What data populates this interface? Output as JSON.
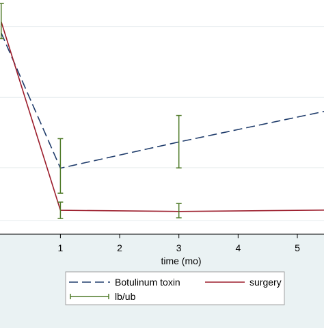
{
  "chart_data": {
    "type": "line",
    "xlabel": "time (mo)",
    "xlim": [
      -0.02,
      5.45
    ],
    "ylim": [
      0,
      1
    ],
    "x_ticks": [
      1,
      2,
      3,
      4,
      5
    ],
    "grid": true,
    "legend_position": "bottom",
    "series": [
      {
        "name": "Botulinum toxin",
        "style": "dashed",
        "color": "#1f3c6b",
        "x": [
          0,
          1,
          3,
          5.45
        ],
        "y": [
          0.86,
          0.282,
          0.394,
          0.524
        ]
      },
      {
        "name": "surgery",
        "style": "solid",
        "color": "#9b1b2a",
        "x": [
          0,
          1,
          3,
          5.45
        ],
        "y": [
          0.908,
          0.102,
          0.097,
          0.103
        ]
      }
    ],
    "error_bars": {
      "name": "lb/ub",
      "color": "#4f7a28",
      "items": [
        {
          "x": 0,
          "lb": 0.835,
          "ub": 0.985
        },
        {
          "x": 1,
          "lb": 0.175,
          "ub": 0.408
        },
        {
          "x": 1,
          "lb": 0.067,
          "ub": 0.137
        },
        {
          "x": 3,
          "lb": 0.283,
          "ub": 0.507
        },
        {
          "x": 3,
          "lb": 0.07,
          "ub": 0.131
        }
      ]
    }
  }
}
